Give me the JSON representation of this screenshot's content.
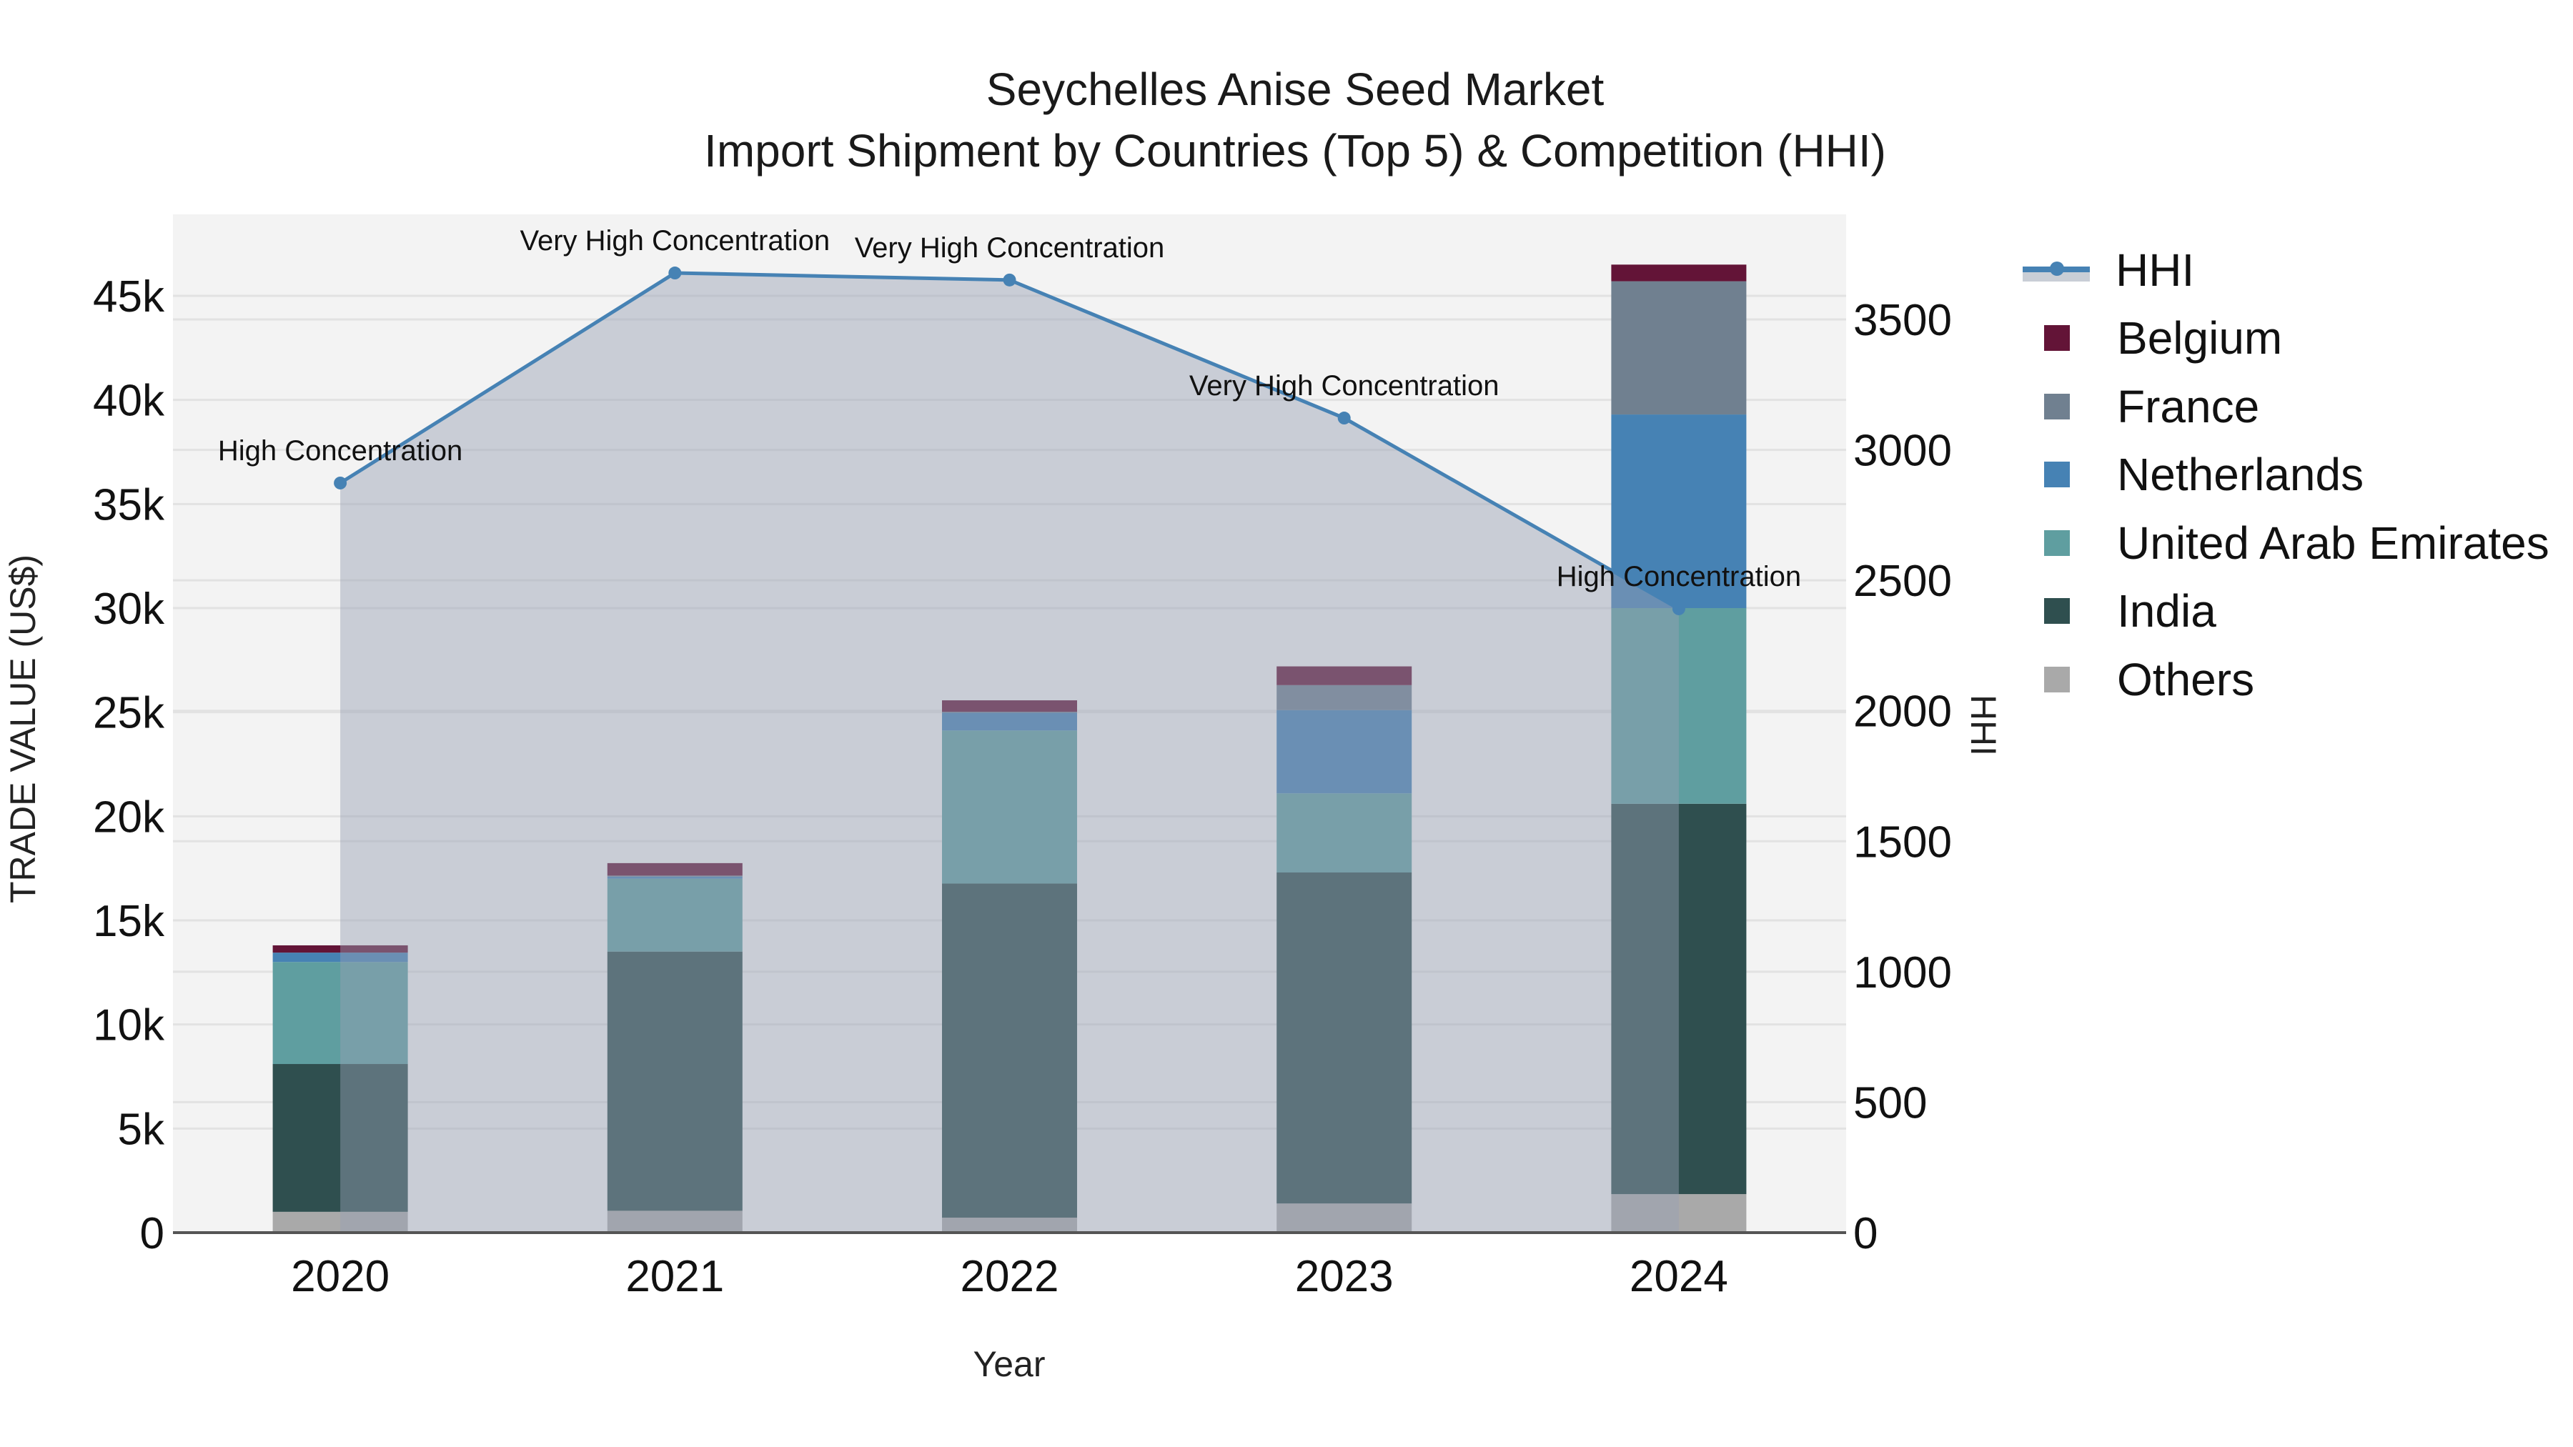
{
  "title": {
    "line1": "Seychelles Anise Seed Market",
    "line2": "Import Shipment by Countries (Top 5) & Competition (HHI)"
  },
  "axes": {
    "x_title": "Year",
    "y_left_title": "TRADE VALUE (US$)",
    "y_right_title": "HHI"
  },
  "legend": {
    "items": [
      {
        "label": "HHI",
        "type": "line",
        "color": "#4682b4"
      },
      {
        "label": "Belgium",
        "type": "bar",
        "color": "#631437"
      },
      {
        "label": "France",
        "type": "bar",
        "color": "#708090"
      },
      {
        "label": "Netherlands",
        "type": "bar",
        "color": "#4682b4"
      },
      {
        "label": "United Arab Emirates",
        "type": "bar",
        "color": "#5f9ea0"
      },
      {
        "label": "India",
        "type": "bar",
        "color": "#2f4f4f"
      },
      {
        "label": "Others",
        "type": "bar",
        "color": "#a9a9a9"
      }
    ]
  },
  "chart_data": {
    "type": "bar",
    "subtype": "stacked bar with line (secondary axis)",
    "title": "Seychelles Anise Seed Market — Import Shipment by Countries (Top 5) & Competition (HHI)",
    "xlabel": "Year",
    "ylabel": "TRADE VALUE (US$)",
    "y2label": "HHI",
    "categories": [
      "2020",
      "2021",
      "2022",
      "2023",
      "2024"
    ],
    "ylim": [
      0,
      49000
    ],
    "y_ticks": [
      0,
      5000,
      10000,
      15000,
      20000,
      25000,
      30000,
      35000,
      40000,
      45000
    ],
    "y_tick_labels": [
      "0",
      "5k",
      "10k",
      "15k",
      "20k",
      "25k",
      "30k",
      "35k",
      "40k",
      "45k"
    ],
    "y2lim": [
      0,
      3857
    ],
    "y2_ticks": [
      0,
      500,
      1000,
      1500,
      2000,
      2500,
      3000,
      3500
    ],
    "y2_tick_labels": [
      "0",
      "500",
      "1000",
      "1500",
      "2000",
      "2500",
      "3000",
      "3500"
    ],
    "series": [
      {
        "name": "Others",
        "color": "#a9a9a9",
        "values": [
          1000,
          1050,
          720,
          1400,
          1850
        ]
      },
      {
        "name": "India",
        "color": "#2f4f4f",
        "values": [
          7100,
          12450,
          16050,
          15900,
          18750
        ]
      },
      {
        "name": "United Arab Emirates",
        "color": "#5f9ea0",
        "values": [
          4900,
          3500,
          7350,
          3800,
          9400
        ]
      },
      {
        "name": "Netherlands",
        "color": "#4682b4",
        "values": [
          450,
          100,
          850,
          4000,
          9300
        ]
      },
      {
        "name": "France",
        "color": "#708090",
        "values": [
          0,
          50,
          50,
          1200,
          6400
        ]
      },
      {
        "name": "Belgium",
        "color": "#631437",
        "values": [
          350,
          600,
          550,
          900,
          800
        ]
      }
    ],
    "line_series": {
      "name": "HHI",
      "axis": "right",
      "color": "#4682b4",
      "fill_color": "rgba(150,160,180,0.45)",
      "values": [
        2873,
        3678,
        3651,
        3122,
        2391
      ],
      "annotations": [
        "High Concentration",
        "Very High Concentration",
        "Very High Concentration",
        "Very High Concentration",
        "High Concentration"
      ]
    },
    "grid": true,
    "legend_position": "right"
  }
}
